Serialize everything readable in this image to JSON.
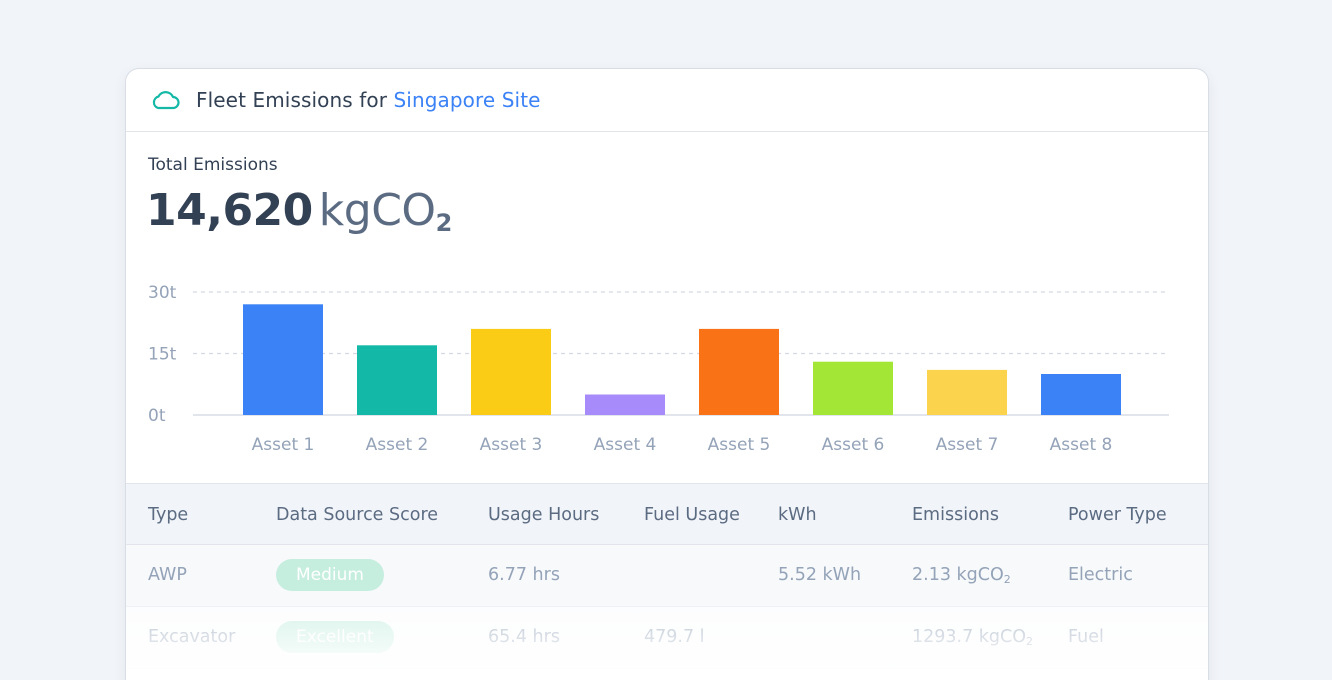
{
  "header": {
    "title_prefix": "Fleet Emissions for",
    "site_name": "Singapore Site",
    "icon": "cloud-icon"
  },
  "summary": {
    "label": "Total Emissions",
    "value": "14,620",
    "unit": "kgCO",
    "unit_sub": "2"
  },
  "chart_data": {
    "type": "bar",
    "categories": [
      "Asset 1",
      "Asset 2",
      "Asset 3",
      "Asset 4",
      "Asset 5",
      "Asset 6",
      "Asset 7",
      "Asset 8"
    ],
    "values": [
      27,
      17,
      21,
      5,
      21,
      13,
      11,
      10
    ],
    "colors": [
      "#3b82f6",
      "#14b8a6",
      "#facc15",
      "#a78bfa",
      "#f97316",
      "#a3e635",
      "#fcd34d",
      "#3b82f6"
    ],
    "y_ticks": [
      {
        "value": 0,
        "label": "0t"
      },
      {
        "value": 15,
        "label": "15t"
      },
      {
        "value": 30,
        "label": "30t"
      }
    ],
    "ylim": [
      0,
      30
    ],
    "grid": true
  },
  "table": {
    "columns": [
      "Type",
      "Data Source Score",
      "Usage Hours",
      "Fuel Usage",
      "kWh",
      "Emissions",
      "Power Type"
    ],
    "rows": [
      {
        "type": "AWP",
        "score": "Medium",
        "usage_hours": "6.77 hrs",
        "fuel_usage": "",
        "kwh": "5.52 kWh",
        "emissions": "2.13 kgCO",
        "emissions_sub": "2",
        "power_type": "Electric"
      },
      {
        "type": "Excavator",
        "score": "Excellent",
        "usage_hours": "65.4 hrs",
        "fuel_usage": "479.7 l",
        "kwh": "",
        "emissions": "1293.7 kgCO",
        "emissions_sub": "2",
        "power_type": "Fuel"
      }
    ]
  }
}
